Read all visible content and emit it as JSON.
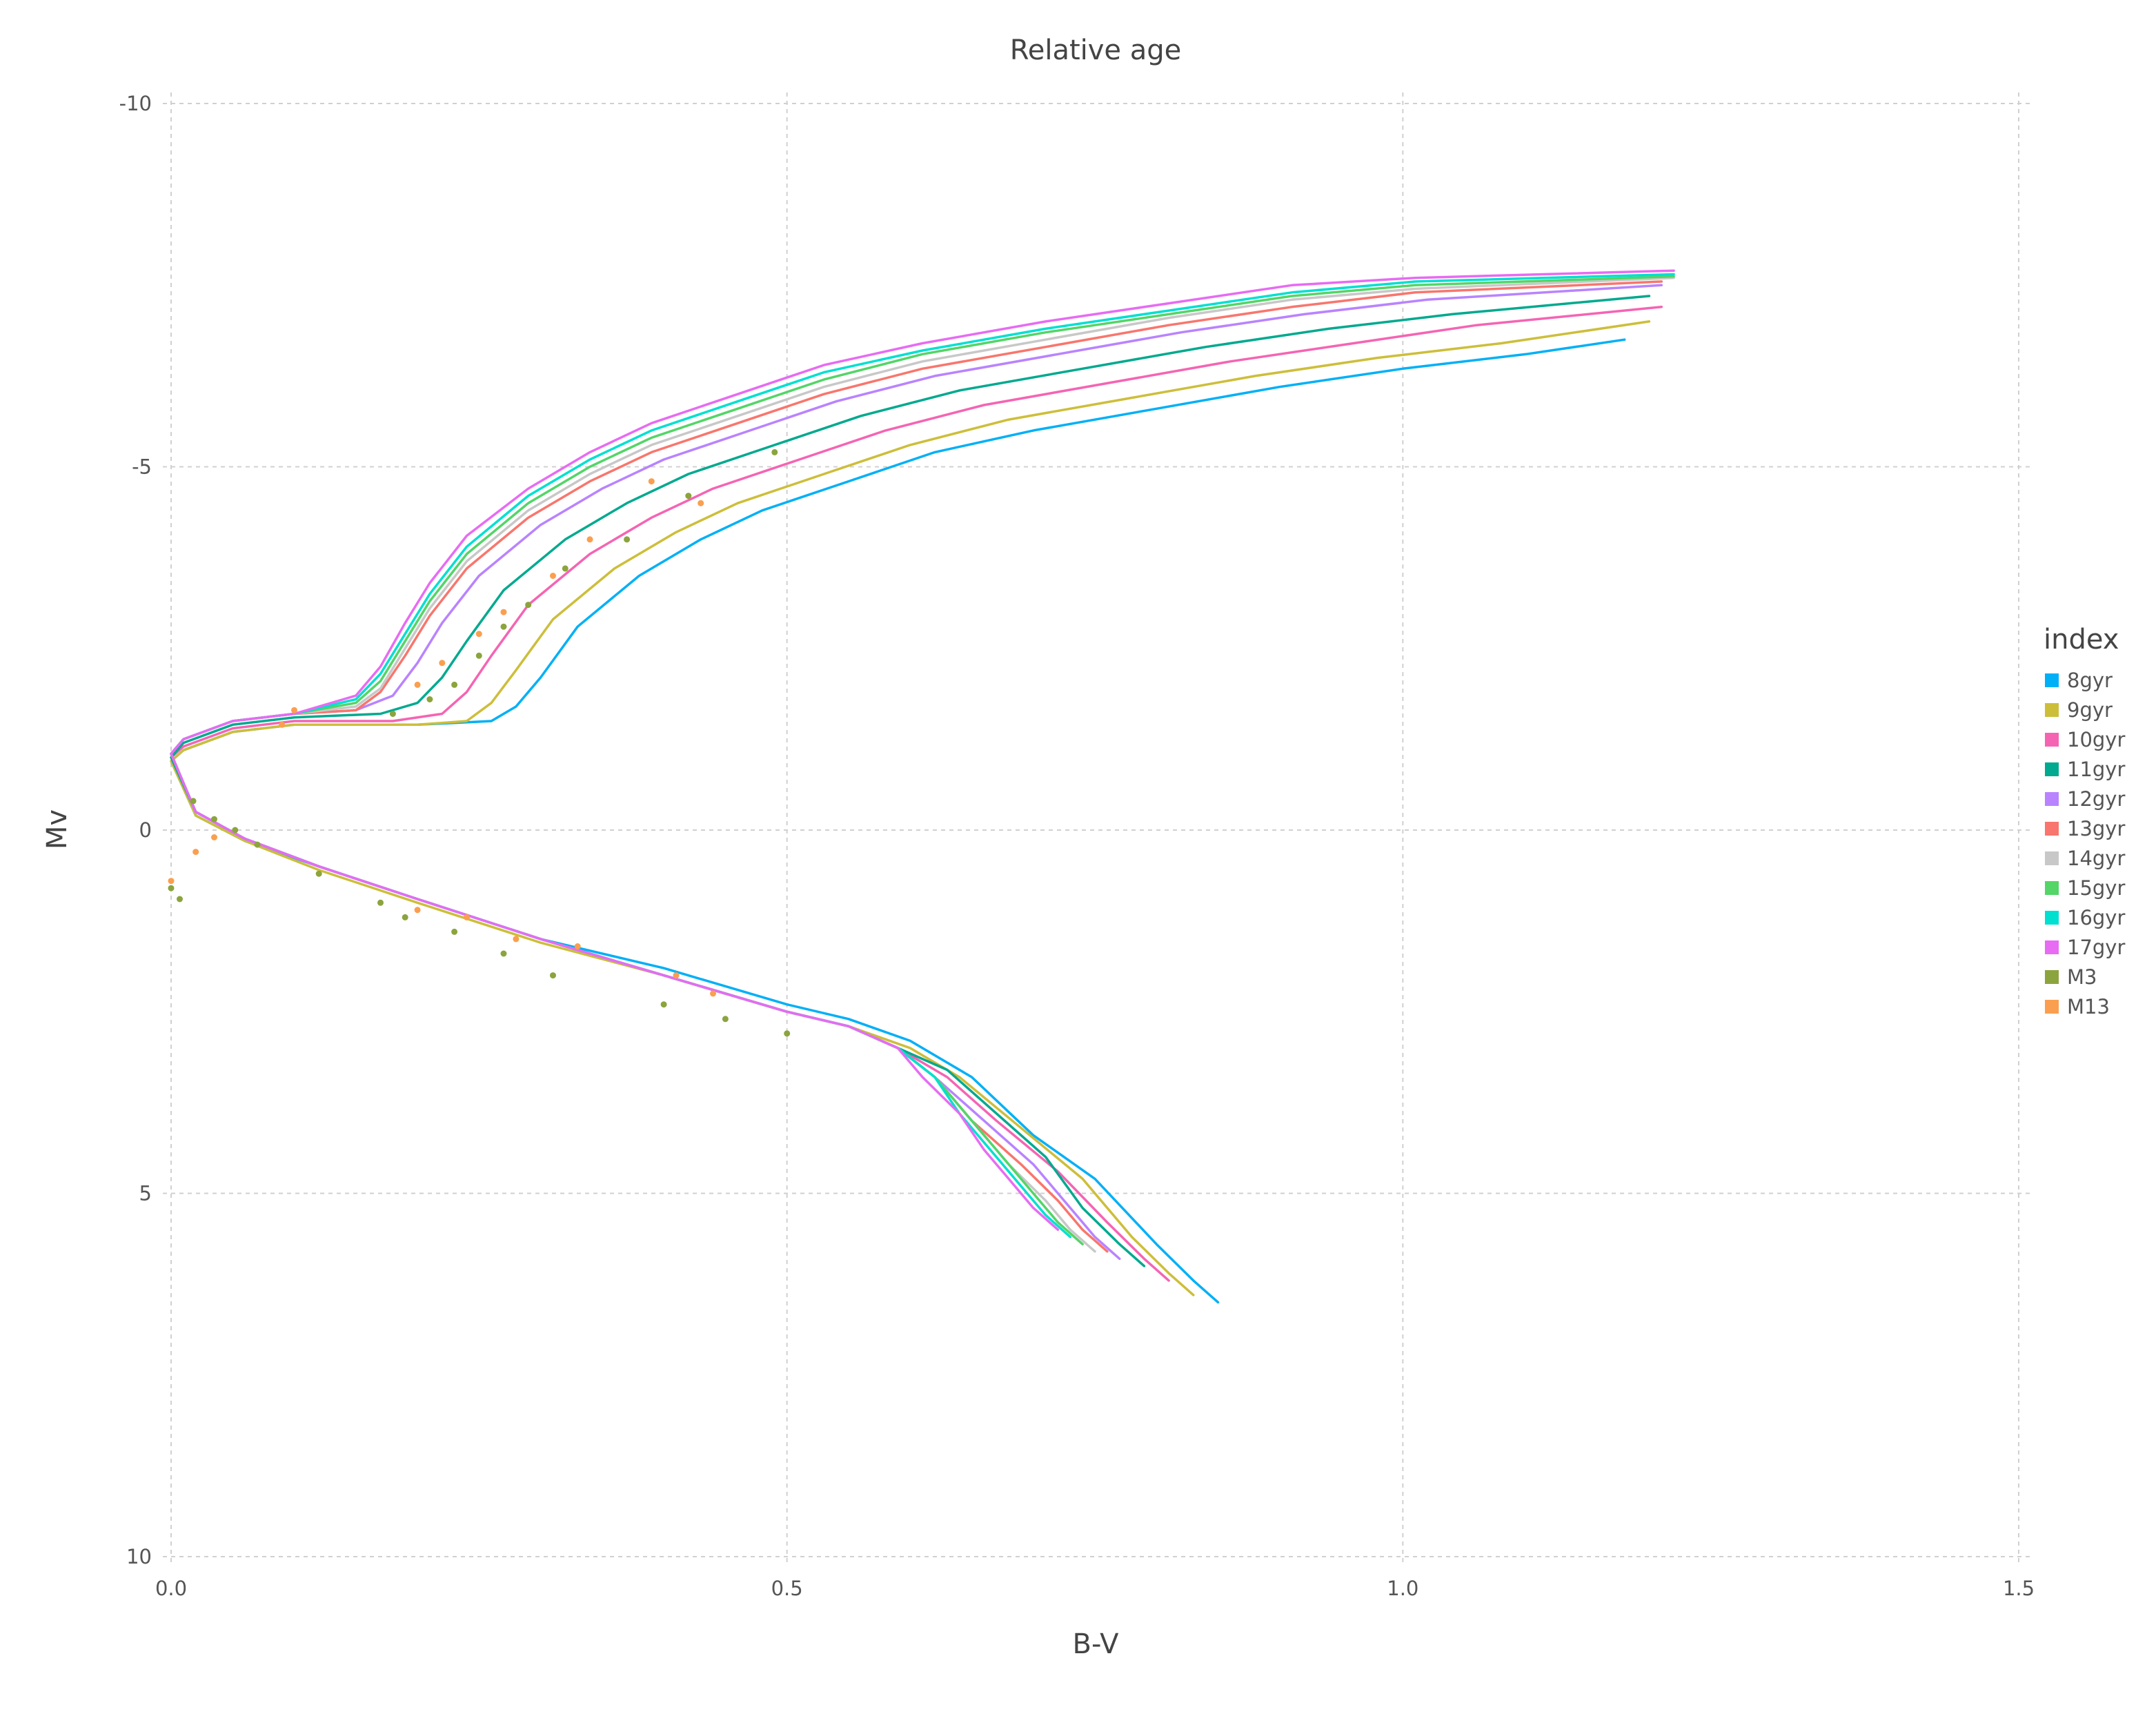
{
  "chart_data": {
    "type": "line",
    "title": "Relative age",
    "xlabel": "B-V",
    "ylabel": "Mv",
    "xlim": [
      0.0,
      1.5
    ],
    "ylim": [
      -10,
      10
    ],
    "y_reversed": true,
    "grid": true,
    "x_ticks": [
      {
        "value": 0.0,
        "label": "0.0"
      },
      {
        "value": 0.5,
        "label": "0.5"
      },
      {
        "value": 1.0,
        "label": "1.0"
      },
      {
        "value": 1.5,
        "label": "1.5"
      }
    ],
    "y_ticks": [
      {
        "value": -10,
        "label": "-10"
      },
      {
        "value": -5,
        "label": "-5"
      },
      {
        "value": 0,
        "label": "0"
      },
      {
        "value": 5,
        "label": "5"
      },
      {
        "value": 10,
        "label": "10"
      }
    ],
    "legend": {
      "title": "index",
      "position": "right"
    },
    "series": [
      {
        "name": "8gyr",
        "color": "#00b0f6",
        "kind": "line",
        "x": [
          0.85,
          0.83,
          0.8,
          0.75,
          0.7,
          0.65,
          0.6,
          0.55,
          0.5,
          0.4,
          0.3,
          0.2,
          0.12,
          0.06,
          0.02,
          0.0,
          0.01,
          0.05,
          0.1,
          0.2,
          0.26,
          0.28,
          0.3,
          0.33,
          0.38,
          0.43,
          0.48,
          0.55,
          0.62,
          0.7,
          0.8,
          0.9,
          1.0,
          1.1,
          1.18
        ],
        "y": [
          6.5,
          6.2,
          5.7,
          4.8,
          4.2,
          3.4,
          2.9,
          2.6,
          2.4,
          1.9,
          1.5,
          0.95,
          0.5,
          0.15,
          -0.2,
          -0.95,
          -1.1,
          -1.35,
          -1.45,
          -1.45,
          -1.5,
          -1.7,
          -2.1,
          -2.8,
          -3.5,
          -4.0,
          -4.4,
          -4.8,
          -5.2,
          -5.5,
          -5.8,
          -6.1,
          -6.35,
          -6.55,
          -6.75
        ]
      },
      {
        "name": "9gyr",
        "color": "#cdbe3a",
        "kind": "line",
        "x": [
          0.83,
          0.81,
          0.78,
          0.74,
          0.69,
          0.64,
          0.6,
          0.55,
          0.5,
          0.4,
          0.3,
          0.2,
          0.12,
          0.06,
          0.02,
          0.0,
          0.01,
          0.05,
          0.1,
          0.2,
          0.24,
          0.26,
          0.28,
          0.31,
          0.36,
          0.41,
          0.46,
          0.53,
          0.6,
          0.68,
          0.78,
          0.88,
          0.98,
          1.08,
          1.2
        ],
        "y": [
          6.4,
          6.1,
          5.6,
          4.8,
          4.1,
          3.4,
          3.0,
          2.7,
          2.5,
          2.0,
          1.55,
          1.0,
          0.55,
          0.15,
          -0.2,
          -0.95,
          -1.1,
          -1.35,
          -1.45,
          -1.45,
          -1.5,
          -1.75,
          -2.2,
          -2.9,
          -3.6,
          -4.1,
          -4.5,
          -4.9,
          -5.3,
          -5.65,
          -5.95,
          -6.25,
          -6.5,
          -6.7,
          -7.0
        ]
      },
      {
        "name": "10gyr",
        "color": "#f564b3",
        "kind": "line",
        "x": [
          0.81,
          0.79,
          0.76,
          0.72,
          0.67,
          0.63,
          0.59,
          0.55,
          0.5,
          0.4,
          0.3,
          0.2,
          0.12,
          0.06,
          0.02,
          0.0,
          0.01,
          0.05,
          0.1,
          0.18,
          0.22,
          0.24,
          0.26,
          0.29,
          0.34,
          0.39,
          0.44,
          0.51,
          0.58,
          0.66,
          0.76,
          0.86,
          0.96,
          1.06,
          1.21
        ],
        "y": [
          6.2,
          5.9,
          5.4,
          4.7,
          4.0,
          3.4,
          3.0,
          2.7,
          2.5,
          2.0,
          1.5,
          0.95,
          0.5,
          0.12,
          -0.25,
          -1.0,
          -1.15,
          -1.4,
          -1.5,
          -1.5,
          -1.6,
          -1.9,
          -2.4,
          -3.1,
          -3.8,
          -4.3,
          -4.7,
          -5.1,
          -5.5,
          -5.85,
          -6.15,
          -6.45,
          -6.7,
          -6.95,
          -7.2
        ]
      },
      {
        "name": "11gyr",
        "color": "#00a98f",
        "kind": "line",
        "x": [
          0.79,
          0.77,
          0.74,
          0.71,
          0.67,
          0.63,
          0.59,
          0.55,
          0.5,
          0.4,
          0.3,
          0.2,
          0.12,
          0.06,
          0.02,
          0.0,
          0.01,
          0.05,
          0.1,
          0.17,
          0.2,
          0.22,
          0.24,
          0.27,
          0.32,
          0.37,
          0.42,
          0.49,
          0.56,
          0.64,
          0.74,
          0.84,
          0.94,
          1.04,
          1.2
        ],
        "y": [
          6.0,
          5.7,
          5.2,
          4.5,
          3.9,
          3.3,
          3.0,
          2.7,
          2.5,
          2.0,
          1.5,
          0.95,
          0.5,
          0.12,
          -0.25,
          -1.0,
          -1.2,
          -1.45,
          -1.55,
          -1.6,
          -1.75,
          -2.1,
          -2.6,
          -3.3,
          -4.0,
          -4.5,
          -4.9,
          -5.3,
          -5.7,
          -6.05,
          -6.35,
          -6.65,
          -6.9,
          -7.1,
          -7.35
        ]
      },
      {
        "name": "12gyr",
        "color": "#b983ff",
        "kind": "line",
        "x": [
          0.77,
          0.75,
          0.73,
          0.7,
          0.66,
          0.62,
          0.59,
          0.55,
          0.5,
          0.4,
          0.3,
          0.2,
          0.12,
          0.06,
          0.02,
          0.0,
          0.01,
          0.05,
          0.1,
          0.15,
          0.18,
          0.2,
          0.22,
          0.25,
          0.3,
          0.35,
          0.4,
          0.47,
          0.54,
          0.62,
          0.72,
          0.82,
          0.92,
          1.02,
          1.21
        ],
        "y": [
          5.9,
          5.6,
          5.2,
          4.6,
          4.0,
          3.4,
          3.0,
          2.7,
          2.5,
          2.0,
          1.5,
          0.95,
          0.5,
          0.12,
          -0.25,
          -1.05,
          -1.25,
          -1.5,
          -1.6,
          -1.65,
          -1.85,
          -2.3,
          -2.85,
          -3.5,
          -4.2,
          -4.7,
          -5.1,
          -5.5,
          -5.9,
          -6.25,
          -6.55,
          -6.85,
          -7.1,
          -7.3,
          -7.5
        ]
      },
      {
        "name": "13gyr",
        "color": "#f8766d",
        "kind": "line",
        "x": [
          0.76,
          0.74,
          0.72,
          0.69,
          0.65,
          0.62,
          0.59,
          0.55,
          0.5,
          0.4,
          0.3,
          0.2,
          0.12,
          0.06,
          0.02,
          0.0,
          0.01,
          0.05,
          0.1,
          0.15,
          0.17,
          0.19,
          0.21,
          0.24,
          0.29,
          0.34,
          0.39,
          0.46,
          0.53,
          0.61,
          0.71,
          0.81,
          0.91,
          1.01,
          1.21
        ],
        "y": [
          5.8,
          5.5,
          5.1,
          4.6,
          4.0,
          3.4,
          3.0,
          2.7,
          2.5,
          2.0,
          1.5,
          0.95,
          0.5,
          0.12,
          -0.25,
          -1.05,
          -1.25,
          -1.5,
          -1.6,
          -1.65,
          -1.9,
          -2.4,
          -2.95,
          -3.6,
          -4.3,
          -4.8,
          -5.2,
          -5.6,
          -6.0,
          -6.35,
          -6.65,
          -6.95,
          -7.2,
          -7.4,
          -7.55
        ]
      },
      {
        "name": "14gyr",
        "color": "#c8c8c8",
        "kind": "line",
        "x": [
          0.75,
          0.73,
          0.71,
          0.68,
          0.65,
          0.62,
          0.59,
          0.55,
          0.5,
          0.4,
          0.3,
          0.2,
          0.12,
          0.06,
          0.02,
          0.0,
          0.01,
          0.05,
          0.1,
          0.15,
          0.17,
          0.19,
          0.21,
          0.24,
          0.29,
          0.34,
          0.39,
          0.46,
          0.53,
          0.61,
          0.71,
          0.81,
          0.91,
          1.01,
          1.22
        ],
        "y": [
          5.8,
          5.5,
          5.1,
          4.6,
          4.0,
          3.4,
          3.0,
          2.7,
          2.5,
          2.0,
          1.5,
          0.95,
          0.5,
          0.12,
          -0.25,
          -1.05,
          -1.25,
          -1.5,
          -1.6,
          -1.7,
          -1.95,
          -2.5,
          -3.05,
          -3.7,
          -4.4,
          -4.9,
          -5.3,
          -5.7,
          -6.1,
          -6.45,
          -6.75,
          -7.05,
          -7.3,
          -7.45,
          -7.6
        ]
      },
      {
        "name": "15gyr",
        "color": "#53d567",
        "kind": "line",
        "x": [
          0.74,
          0.72,
          0.7,
          0.68,
          0.65,
          0.62,
          0.59,
          0.55,
          0.5,
          0.4,
          0.3,
          0.2,
          0.12,
          0.06,
          0.02,
          0.0,
          0.01,
          0.05,
          0.1,
          0.15,
          0.17,
          0.19,
          0.21,
          0.24,
          0.29,
          0.34,
          0.39,
          0.46,
          0.53,
          0.61,
          0.71,
          0.81,
          0.91,
          1.01,
          1.22
        ],
        "y": [
          5.7,
          5.4,
          5.0,
          4.6,
          4.0,
          3.4,
          3.0,
          2.7,
          2.5,
          2.0,
          1.5,
          0.95,
          0.5,
          0.12,
          -0.25,
          -1.05,
          -1.25,
          -1.5,
          -1.6,
          -1.75,
          -2.05,
          -2.6,
          -3.15,
          -3.8,
          -4.5,
          -5.0,
          -5.4,
          -5.8,
          -6.2,
          -6.55,
          -6.85,
          -7.1,
          -7.35,
          -7.5,
          -7.62
        ]
      },
      {
        "name": "16gyr",
        "color": "#00e0d0",
        "kind": "line",
        "x": [
          0.73,
          0.71,
          0.69,
          0.67,
          0.64,
          0.62,
          0.59,
          0.55,
          0.5,
          0.4,
          0.3,
          0.2,
          0.12,
          0.06,
          0.02,
          0.0,
          0.01,
          0.05,
          0.1,
          0.15,
          0.17,
          0.19,
          0.21,
          0.24,
          0.29,
          0.34,
          0.39,
          0.46,
          0.53,
          0.61,
          0.71,
          0.81,
          0.91,
          1.01,
          1.22
        ],
        "y": [
          5.6,
          5.3,
          4.9,
          4.5,
          3.9,
          3.4,
          3.0,
          2.7,
          2.5,
          2.0,
          1.5,
          0.95,
          0.5,
          0.12,
          -0.25,
          -1.05,
          -1.25,
          -1.5,
          -1.6,
          -1.8,
          -2.15,
          -2.7,
          -3.25,
          -3.9,
          -4.6,
          -5.1,
          -5.5,
          -5.9,
          -6.3,
          -6.6,
          -6.9,
          -7.15,
          -7.4,
          -7.55,
          -7.65
        ]
      },
      {
        "name": "17gyr",
        "color": "#e76bf3",
        "kind": "line",
        "x": [
          0.72,
          0.7,
          0.68,
          0.66,
          0.64,
          0.61,
          0.59,
          0.55,
          0.5,
          0.4,
          0.3,
          0.2,
          0.12,
          0.06,
          0.02,
          0.0,
          0.01,
          0.05,
          0.1,
          0.15,
          0.17,
          0.19,
          0.21,
          0.24,
          0.29,
          0.34,
          0.39,
          0.46,
          0.53,
          0.61,
          0.71,
          0.81,
          0.91,
          1.01,
          1.22
        ],
        "y": [
          5.5,
          5.2,
          4.8,
          4.4,
          3.9,
          3.4,
          3.0,
          2.7,
          2.5,
          2.0,
          1.5,
          0.95,
          0.5,
          0.12,
          -0.25,
          -1.05,
          -1.25,
          -1.5,
          -1.6,
          -1.85,
          -2.25,
          -2.85,
          -3.4,
          -4.05,
          -4.7,
          -5.2,
          -5.6,
          -6.0,
          -6.4,
          -6.7,
          -7.0,
          -7.25,
          -7.5,
          -7.6,
          -7.7
        ]
      },
      {
        "name": "M3",
        "color": "#8ba43d",
        "kind": "points",
        "x": [
          0.0,
          0.007,
          0.018,
          0.035,
          0.052,
          0.07,
          0.12,
          0.17,
          0.19,
          0.23,
          0.27,
          0.31,
          0.4,
          0.45,
          0.5,
          0.18,
          0.21,
          0.23,
          0.25,
          0.27,
          0.29,
          0.32,
          0.37,
          0.42,
          0.49
        ],
        "y": [
          0.8,
          0.95,
          -0.4,
          -0.15,
          0.0,
          0.2,
          0.6,
          1.0,
          1.2,
          1.4,
          1.7,
          2.0,
          2.4,
          2.6,
          2.8,
          -1.6,
          -1.8,
          -2.0,
          -2.4,
          -2.8,
          -3.1,
          -3.6,
          -4.0,
          -4.6,
          -5.2
        ]
      },
      {
        "name": "M13",
        "color": "#fa9f4f",
        "kind": "points",
        "x": [
          0.0,
          0.02,
          0.035,
          0.09,
          0.1,
          0.2,
          0.24,
          0.28,
          0.33,
          0.41,
          0.44,
          0.2,
          0.22,
          0.25,
          0.27,
          0.31,
          0.34,
          0.39,
          0.43
        ],
        "y": [
          0.7,
          0.3,
          0.1,
          -1.45,
          -1.65,
          1.1,
          1.2,
          1.5,
          1.6,
          2.0,
          2.25,
          -2.0,
          -2.3,
          -2.7,
          -3.0,
          -3.5,
          -4.0,
          -4.8,
          -4.5
        ]
      }
    ]
  }
}
